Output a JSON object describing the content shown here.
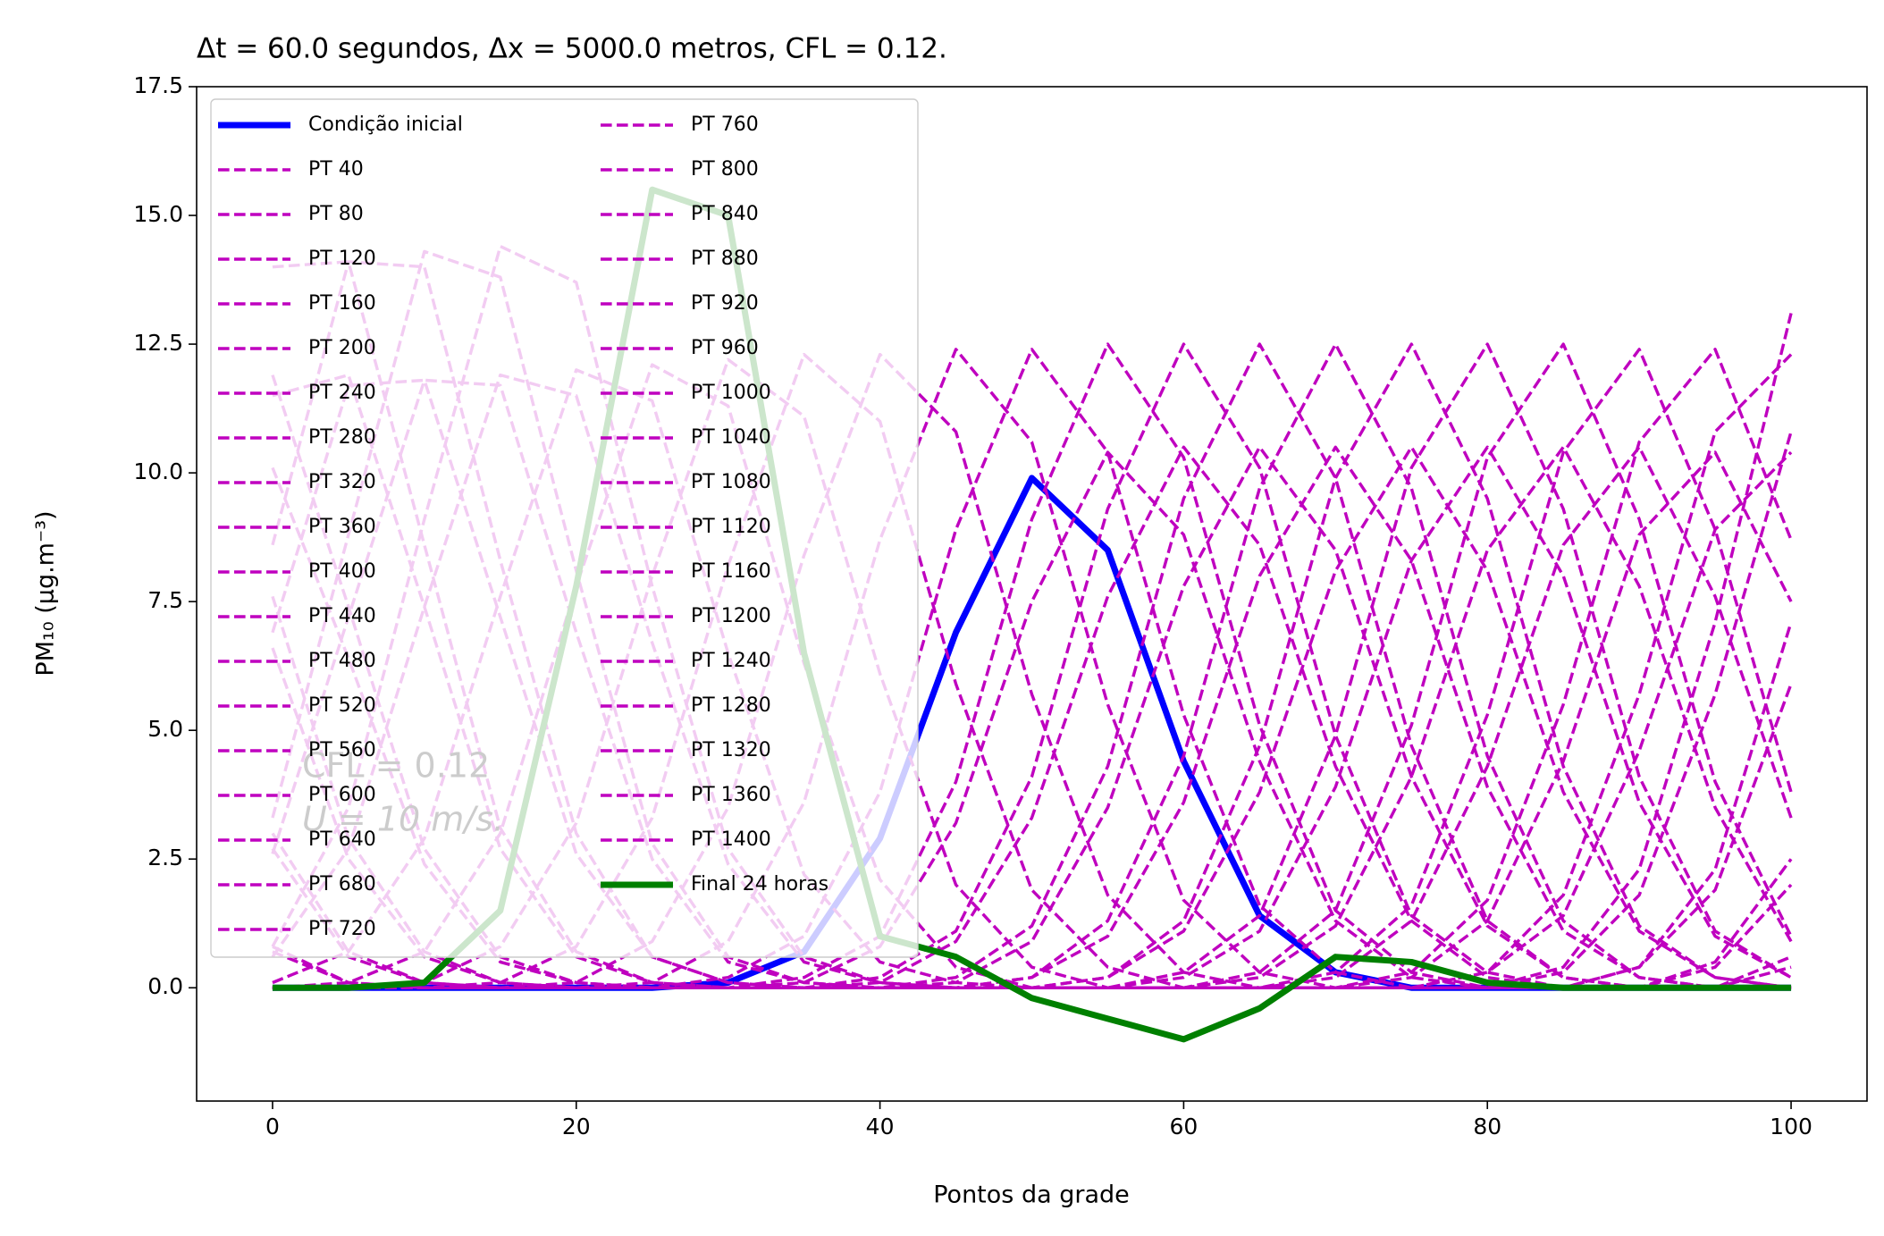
{
  "chart_data": {
    "type": "line",
    "title": "Δt = 60.0 segundos, Δx = 5000.0 metros, CFL = 0.12.",
    "x_label": "Pontos da grade",
    "y_label": "PM₁₀ (μg.m⁻³)",
    "annotations": [
      "CFL = 0.12",
      "U = 10 m/s."
    ],
    "legend": "upper left",
    "legend_ncol": 2,
    "xlim": [
      -5,
      105
    ],
    "xticks": [
      0,
      20,
      40,
      60,
      80,
      100
    ],
    "ylim": [
      -2.2,
      17.5
    ],
    "yticks": [
      {
        "value": 0,
        "label": "0.0"
      },
      2.5,
      {
        "value": 5,
        "label": "5.0"
      },
      7.5,
      {
        "value": 10,
        "label": "10.0"
      },
      12.5,
      {
        "value": 15,
        "label": "15.0"
      },
      17.5
    ],
    "x": [
      0,
      5,
      10,
      15,
      20,
      25,
      30,
      35,
      40,
      45,
      50,
      55,
      60,
      65,
      70,
      75,
      80,
      85,
      90,
      95,
      100
    ],
    "series": [
      {
        "name": "Condição inicial",
        "color": "#0000ff",
        "linestyle": "solid",
        "values": [
          0,
          0,
          0,
          0,
          0,
          0,
          0.1,
          0.7,
          2.9,
          6.9,
          9.9,
          8.5,
          4.4,
          1.4,
          0.3,
          0,
          0,
          0,
          0,
          0,
          0
        ]
      },
      {
        "name": "PT 40",
        "color": "#bf00bf",
        "linestyle": "dashed",
        "values": [
          0,
          0,
          0,
          0,
          0,
          0,
          0,
          0.1,
          0.8,
          3.2,
          7.5,
          10.4,
          8.8,
          4.4,
          1.3,
          0.2,
          0,
          0,
          0,
          0,
          0
        ]
      },
      {
        "name": "PT 80",
        "color": "#bf00bf",
        "linestyle": "dashed",
        "values": [
          0,
          0,
          0,
          0,
          0,
          0,
          0,
          0,
          0.1,
          0.9,
          3.3,
          7.6,
          10.5,
          8.6,
          4.3,
          1.3,
          0.2,
          0,
          0,
          0,
          0
        ]
      },
      {
        "name": "PT 120",
        "color": "#bf00bf",
        "linestyle": "dashed",
        "values": [
          0,
          0,
          0,
          0,
          0,
          0,
          0,
          0,
          0,
          0.1,
          0.9,
          3.5,
          7.8,
          10.5,
          8.5,
          4.1,
          1.2,
          0.2,
          0,
          0,
          0
        ]
      },
      {
        "name": "PT 160",
        "color": "#bf00bf",
        "linestyle": "dashed",
        "values": [
          0,
          0,
          0,
          0,
          0,
          0,
          0,
          0,
          0,
          0,
          0.2,
          1.0,
          3.6,
          8.0,
          10.5,
          8.3,
          3.9,
          1.1,
          0.2,
          0,
          0
        ]
      },
      {
        "name": "PT 200",
        "color": "#bf00bf",
        "linestyle": "dashed",
        "values": [
          0,
          0,
          0,
          0,
          0,
          0,
          0,
          0,
          0,
          0,
          0,
          0.2,
          1.1,
          3.8,
          8.1,
          10.5,
          8.1,
          3.8,
          1.1,
          0.2,
          0
        ]
      },
      {
        "name": "PT 240",
        "color": "#bf00bf",
        "linestyle": "dashed",
        "values": [
          0,
          0,
          0,
          0,
          0,
          0,
          0,
          0,
          0,
          0,
          0,
          0,
          0.2,
          1.1,
          3.9,
          8.3,
          10.5,
          8.0,
          3.6,
          1.0,
          0.2
        ]
      },
      {
        "name": "PT 280",
        "color": "#bf00bf",
        "linestyle": "dashed",
        "values": [
          0.7,
          0.1,
          0,
          0,
          0,
          0,
          0,
          0,
          0,
          0,
          0,
          0,
          0,
          0.2,
          1.2,
          4.1,
          8.5,
          10.5,
          7.8,
          3.5,
          0.9
        ]
      },
      {
        "name": "PT 320",
        "color": "#bf00bf",
        "linestyle": "dashed",
        "values": [
          2.7,
          0.6,
          0.1,
          0,
          0,
          0,
          0,
          0,
          0,
          0,
          0,
          0,
          0,
          0,
          0.2,
          1.3,
          4.3,
          8.6,
          10.5,
          7.6,
          3.3
        ]
      },
      {
        "name": "PT 360",
        "color": "#bf00bf",
        "linestyle": "dashed",
        "values": [
          6.6,
          2.5,
          0.6,
          0.1,
          0,
          0,
          0,
          0,
          0,
          0,
          0,
          0,
          0,
          0,
          0,
          0.2,
          1.3,
          4.4,
          8.8,
          10.4,
          7.5
        ]
      },
      {
        "name": "PT 400",
        "color": "#bf00bf",
        "linestyle": "dashed",
        "values": [
          10.1,
          6.4,
          2.4,
          0.5,
          0.1,
          0,
          0,
          0,
          0,
          0,
          0,
          0,
          0,
          0,
          0,
          0,
          0.3,
          1.4,
          4.6,
          8.9,
          10.4
        ]
      },
      {
        "name": "PT 440",
        "color": "#bf00bf",
        "linestyle": "dashed",
        "values": [
          11.5,
          11.9,
          7.4,
          2.7,
          0.6,
          0.1,
          0,
          0,
          0,
          0,
          0,
          0,
          0,
          0,
          0,
          0,
          0,
          0.3,
          1.8,
          5.7,
          10.8
        ]
      },
      {
        "name": "PT 480",
        "color": "#bf00bf",
        "linestyle": "dashed",
        "values": [
          6.9,
          11.7,
          11.8,
          7.2,
          2.6,
          0.6,
          0.1,
          0,
          0,
          0,
          0,
          0,
          0,
          0,
          0,
          0,
          0,
          0,
          0.4,
          1.9,
          5.9
        ]
      },
      {
        "name": "PT 520",
        "color": "#bf00bf",
        "linestyle": "dashed",
        "values": [
          2.6,
          7.2,
          11.8,
          11.7,
          6.9,
          2.5,
          0.5,
          0.1,
          0,
          0,
          0,
          0,
          0,
          0,
          0,
          0,
          0,
          0,
          0,
          0.4,
          2.0
        ]
      },
      {
        "name": "PT 560",
        "color": "#bf00bf",
        "linestyle": "dashed",
        "values": [
          0.6,
          2.7,
          7.4,
          11.9,
          11.5,
          6.7,
          2.4,
          0.5,
          0.1,
          0,
          0,
          0,
          0,
          0,
          0,
          0,
          0,
          0,
          0,
          0,
          0.4
        ]
      },
      {
        "name": "PT 600",
        "color": "#bf00bf",
        "linestyle": "dashed",
        "values": [
          0.1,
          0.7,
          2.9,
          7.6,
          12.0,
          11.4,
          6.5,
          2.2,
          0.5,
          0.1,
          0,
          0,
          0,
          0,
          0,
          0,
          0,
          0,
          0,
          0,
          0
        ]
      },
      {
        "name": "PT 640",
        "color": "#bf00bf",
        "linestyle": "dashed",
        "values": [
          0,
          0.1,
          0.7,
          3.0,
          7.8,
          12.1,
          11.3,
          6.3,
          2.1,
          0.4,
          0,
          0,
          0,
          0,
          0,
          0,
          0,
          0,
          0,
          0,
          0
        ]
      },
      {
        "name": "PT 680",
        "color": "#bf00bf",
        "linestyle": "dashed",
        "values": [
          0,
          0,
          0.1,
          0.8,
          3.2,
          8.0,
          12.2,
          11.1,
          6.1,
          2.0,
          0.4,
          0,
          0,
          0,
          0,
          0,
          0,
          0,
          0,
          0,
          0
        ]
      },
      {
        "name": "PT 720",
        "color": "#bf00bf",
        "linestyle": "dashed",
        "values": [
          0,
          0,
          0,
          0.1,
          0.8,
          3.3,
          8.2,
          12.3,
          11.0,
          5.9,
          1.9,
          0.4,
          0,
          0,
          0,
          0,
          0,
          0,
          0,
          0,
          0
        ]
      },
      {
        "name": "PT 760",
        "color": "#bf00bf",
        "linestyle": "dashed",
        "values": [
          0,
          0,
          0,
          0,
          0.1,
          0.9,
          3.5,
          8.4,
          12.3,
          10.8,
          5.7,
          1.8,
          0.3,
          0,
          0,
          0,
          0,
          0,
          0,
          0,
          0
        ]
      },
      {
        "name": "PT 800",
        "color": "#bf00bf",
        "linestyle": "dashed",
        "values": [
          0,
          0,
          0,
          0,
          0,
          0.1,
          0.9,
          3.6,
          8.7,
          12.4,
          10.6,
          5.5,
          1.7,
          0.3,
          0,
          0,
          0,
          0,
          0,
          0,
          0
        ]
      },
      {
        "name": "PT 840",
        "color": "#bf00bf",
        "linestyle": "dashed",
        "values": [
          0,
          0,
          0,
          0,
          0,
          0,
          0.2,
          1.0,
          3.8,
          8.9,
          12.4,
          10.4,
          5.3,
          1.6,
          0.3,
          0,
          0,
          0,
          0,
          0,
          0
        ]
      },
      {
        "name": "PT 880",
        "color": "#bf00bf",
        "linestyle": "dashed",
        "values": [
          0,
          0,
          0,
          0,
          0,
          0,
          0,
          0.2,
          1.0,
          4.0,
          9.1,
          12.5,
          10.3,
          5.1,
          1.5,
          0.3,
          0,
          0,
          0,
          0,
          0
        ]
      },
      {
        "name": "PT 920",
        "color": "#bf00bf",
        "linestyle": "dashed",
        "values": [
          0,
          0,
          0,
          0,
          0,
          0,
          0,
          0,
          0.2,
          1.1,
          4.1,
          9.3,
          12.5,
          10.1,
          4.9,
          1.4,
          0.3,
          0,
          0,
          0,
          0
        ]
      },
      {
        "name": "PT 960",
        "color": "#bf00bf",
        "linestyle": "dashed",
        "values": [
          0,
          0,
          0,
          0,
          0,
          0,
          0,
          0,
          0,
          0.2,
          1.2,
          4.3,
          9.5,
          12.5,
          9.9,
          4.7,
          1.3,
          0.2,
          0,
          0,
          0
        ]
      },
      {
        "name": "PT 1000",
        "color": "#bf00bf",
        "linestyle": "dashed",
        "values": [
          0,
          0,
          0,
          0,
          0,
          0,
          0,
          0,
          0,
          0,
          0.2,
          1.3,
          4.5,
          9.7,
          12.5,
          9.7,
          4.5,
          1.3,
          0.2,
          0,
          0
        ]
      },
      {
        "name": "PT 1040",
        "color": "#bf00bf",
        "linestyle": "dashed",
        "values": [
          0,
          0,
          0,
          0,
          0,
          0,
          0,
          0,
          0,
          0,
          0,
          0.2,
          1.3,
          4.7,
          9.9,
          12.5,
          9.5,
          4.3,
          1.2,
          0.2,
          0
        ]
      },
      {
        "name": "PT 1080",
        "color": "#bf00bf",
        "linestyle": "dashed",
        "values": [
          0,
          0,
          0,
          0,
          0,
          0,
          0,
          0,
          0,
          0,
          0,
          0,
          0.3,
          1.4,
          4.9,
          10.1,
          12.5,
          9.3,
          4.1,
          1.1,
          0.2
        ]
      },
      {
        "name": "PT 1120",
        "color": "#bf00bf",
        "linestyle": "dashed",
        "values": [
          0.8,
          0.1,
          0,
          0,
          0,
          0,
          0,
          0,
          0,
          0,
          0,
          0,
          0,
          0.3,
          1.5,
          5.1,
          10.3,
          12.5,
          9.1,
          4.0,
          1.0
        ]
      },
      {
        "name": "PT 1160",
        "color": "#bf00bf",
        "linestyle": "dashed",
        "values": [
          3.0,
          0.7,
          0.1,
          0,
          0,
          0,
          0,
          0,
          0,
          0,
          0,
          0,
          0,
          0,
          0.3,
          1.6,
          5.3,
          10.4,
          12.4,
          8.9,
          3.8
        ]
      },
      {
        "name": "PT 1200",
        "color": "#bf00bf",
        "linestyle": "dashed",
        "values": [
          7.6,
          2.9,
          0.7,
          0.1,
          0,
          0,
          0,
          0,
          0,
          0,
          0,
          0,
          0,
          0,
          0,
          0.3,
          1.7,
          5.5,
          10.6,
          12.4,
          8.7
        ]
      },
      {
        "name": "PT 1240",
        "color": "#bf00bf",
        "linestyle": "dashed",
        "values": [
          11.9,
          7.4,
          2.7,
          0.6,
          0.1,
          0,
          0,
          0,
          0,
          0,
          0,
          0,
          0,
          0,
          0,
          0,
          0.3,
          1.8,
          5.7,
          10.8,
          12.3
        ]
      },
      {
        "name": "PT 1280",
        "color": "#bf00bf",
        "linestyle": "dashed",
        "values": [
          14.0,
          14.1,
          8.6,
          3.1,
          0.7,
          0.1,
          0,
          0,
          0,
          0,
          0,
          0,
          0,
          0,
          0,
          0,
          0,
          0.4,
          2.3,
          7.1,
          13.1
        ]
      },
      {
        "name": "PT 1320",
        "color": "#bf00bf",
        "linestyle": "dashed",
        "values": [
          8.6,
          14.1,
          14.0,
          8.3,
          3.0,
          0.6,
          0.1,
          0,
          0,
          0,
          0,
          0,
          0,
          0,
          0,
          0,
          0,
          0,
          0.4,
          2.3,
          7.1
        ]
      },
      {
        "name": "PT 1360",
        "color": "#bf00bf",
        "linestyle": "dashed",
        "values": [
          3.3,
          8.8,
          14.3,
          13.8,
          8.1,
          2.8,
          0.6,
          0.1,
          0,
          0,
          0,
          0,
          0,
          0,
          0,
          0,
          0,
          0,
          0,
          0.5,
          2.5
        ]
      },
      {
        "name": "PT 1400",
        "color": "#bf00bf",
        "linestyle": "dashed",
        "values": [
          0.8,
          3.5,
          9.1,
          14.4,
          13.7,
          7.8,
          2.7,
          0.6,
          0.1,
          0,
          0,
          0,
          0,
          0,
          0,
          0,
          0,
          0,
          0,
          0,
          0.6
        ]
      },
      {
        "name": "Final 24 horas",
        "color": "#008000",
        "linestyle": "solid",
        "values": [
          0,
          0,
          0.1,
          1.5,
          7.8,
          15.5,
          15.0,
          6.5,
          1.0,
          0.6,
          -0.2,
          -0.6,
          -1.0,
          -0.4,
          0.6,
          0.5,
          0.1,
          0,
          0,
          0,
          0
        ]
      }
    ]
  }
}
